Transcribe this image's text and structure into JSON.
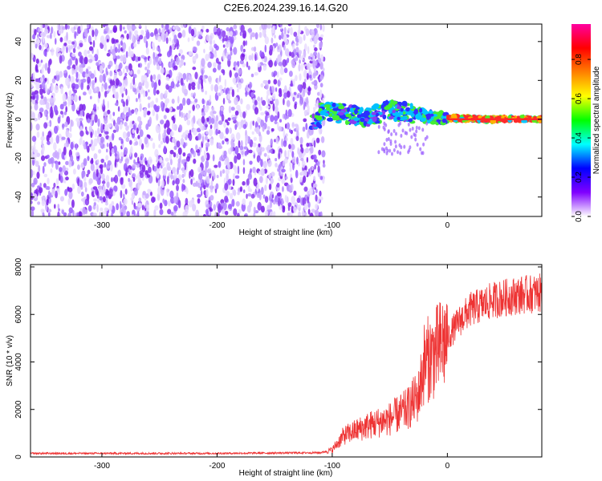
{
  "title": "C2E6.2024.239.16.14.G20",
  "chart_data": [
    {
      "type": "heatmap",
      "title": "C2E6.2024.239.16.14.G20",
      "xlabel": "Height of straight line (km)",
      "ylabel": "Frequency (Hz)",
      "xlim": [
        -362,
        82
      ],
      "ylim": [
        -50,
        49
      ],
      "xticks": [
        -300,
        -200,
        -100,
        0
      ],
      "yticks": [
        -40,
        -20,
        0,
        20,
        40
      ],
      "xtick_labels": [
        "-300",
        "-200",
        "-100",
        "0"
      ],
      "ytick_labels": [
        "-40",
        "-20",
        "0",
        "20",
        "40"
      ],
      "noise_region_x": [
        -362,
        -107
      ],
      "signal_band": [
        {
          "x": -110,
          "freq": 4
        },
        {
          "x": -90,
          "freq": 3
        },
        {
          "x": -70,
          "freq": 1
        },
        {
          "x": -50,
          "freq": 5
        },
        {
          "x": -30,
          "freq": 3
        },
        {
          "x": -15,
          "freq": 1
        },
        {
          "x": 0,
          "freq": 0.5
        },
        {
          "x": 40,
          "freq": 0
        },
        {
          "x": 82,
          "freq": 0
        }
      ],
      "colorbar": {
        "label": "Normalized spectral amplitude",
        "range": [
          0,
          0.98
        ],
        "ticks": [
          0.0,
          0.2,
          0.4,
          0.6,
          0.8
        ],
        "tick_labels": [
          "0.0",
          "0.2",
          "0.4",
          "0.6",
          "0.8"
        ],
        "colors": [
          "#ffffff",
          "#8000ff",
          "#0000ff",
          "#00ffff",
          "#00ff00",
          "#ffff00",
          "#ff8000",
          "#ff0000",
          "#ff00a0"
        ]
      }
    },
    {
      "type": "line",
      "xlabel": "Height of straight line (km)",
      "ylabel": "SNR (10 * v/v)",
      "xlim": [
        -362,
        82
      ],
      "ylim": [
        0,
        8100
      ],
      "xticks": [
        -300,
        -200,
        -100,
        0
      ],
      "yticks": [
        0,
        2000,
        4000,
        6000,
        8000
      ],
      "xtick_labels": [
        "-300",
        "-200",
        "-100",
        "0"
      ],
      "ytick_labels": [
        "0",
        "2000",
        "4000",
        "6000",
        "8000"
      ],
      "color": "#ee3333",
      "envelope": [
        {
          "x": -362,
          "y": 150
        },
        {
          "x": -200,
          "y": 150
        },
        {
          "x": -110,
          "y": 180
        },
        {
          "x": -100,
          "y": 300
        },
        {
          "x": -90,
          "y": 900
        },
        {
          "x": -70,
          "y": 1300
        },
        {
          "x": -50,
          "y": 1600
        },
        {
          "x": -35,
          "y": 2000
        },
        {
          "x": -25,
          "y": 2600
        },
        {
          "x": -20,
          "y": 4000
        },
        {
          "x": -10,
          "y": 4400
        },
        {
          "x": 0,
          "y": 5000
        },
        {
          "x": 10,
          "y": 5700
        },
        {
          "x": 20,
          "y": 6200
        },
        {
          "x": 40,
          "y": 6600
        },
        {
          "x": 60,
          "y": 6800
        },
        {
          "x": 82,
          "y": 6900
        }
      ]
    }
  ]
}
